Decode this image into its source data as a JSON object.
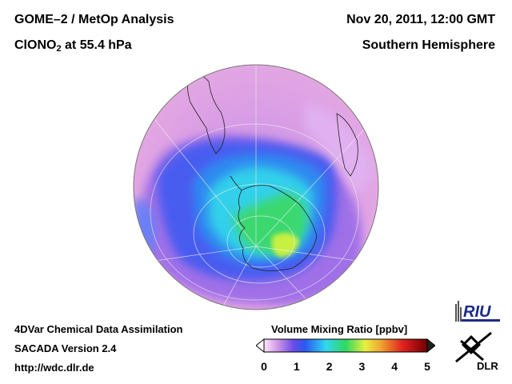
{
  "header": {
    "title": "GOME–2 / MetOp Analysis",
    "species_main": "ClONO",
    "species_sub": "2",
    "species_rest": " at 55.4 hPa",
    "date": "Nov 20, 2011, 12:00 GMT",
    "hemisphere": "Southern Hemisphere"
  },
  "footer": {
    "line1": "4DVar Chemical Data Assimilation",
    "line2": "SACADA Version 2.4",
    "line3": "http://wdc.dlr.de"
  },
  "colorbar": {
    "title": "Volume Mixing Ratio [ppbv]",
    "ticks": [
      "0",
      "1",
      "2",
      "3",
      "4",
      "5"
    ],
    "min": 0,
    "max": 5
  },
  "logos": {
    "riu": "RIU",
    "dlr": "DLR"
  },
  "colors": {
    "low": "#e8a4e0",
    "mid_low": "#4060f0",
    "mid": "#30d8e8",
    "high": "#40e040",
    "peak": "#e8f040"
  }
}
